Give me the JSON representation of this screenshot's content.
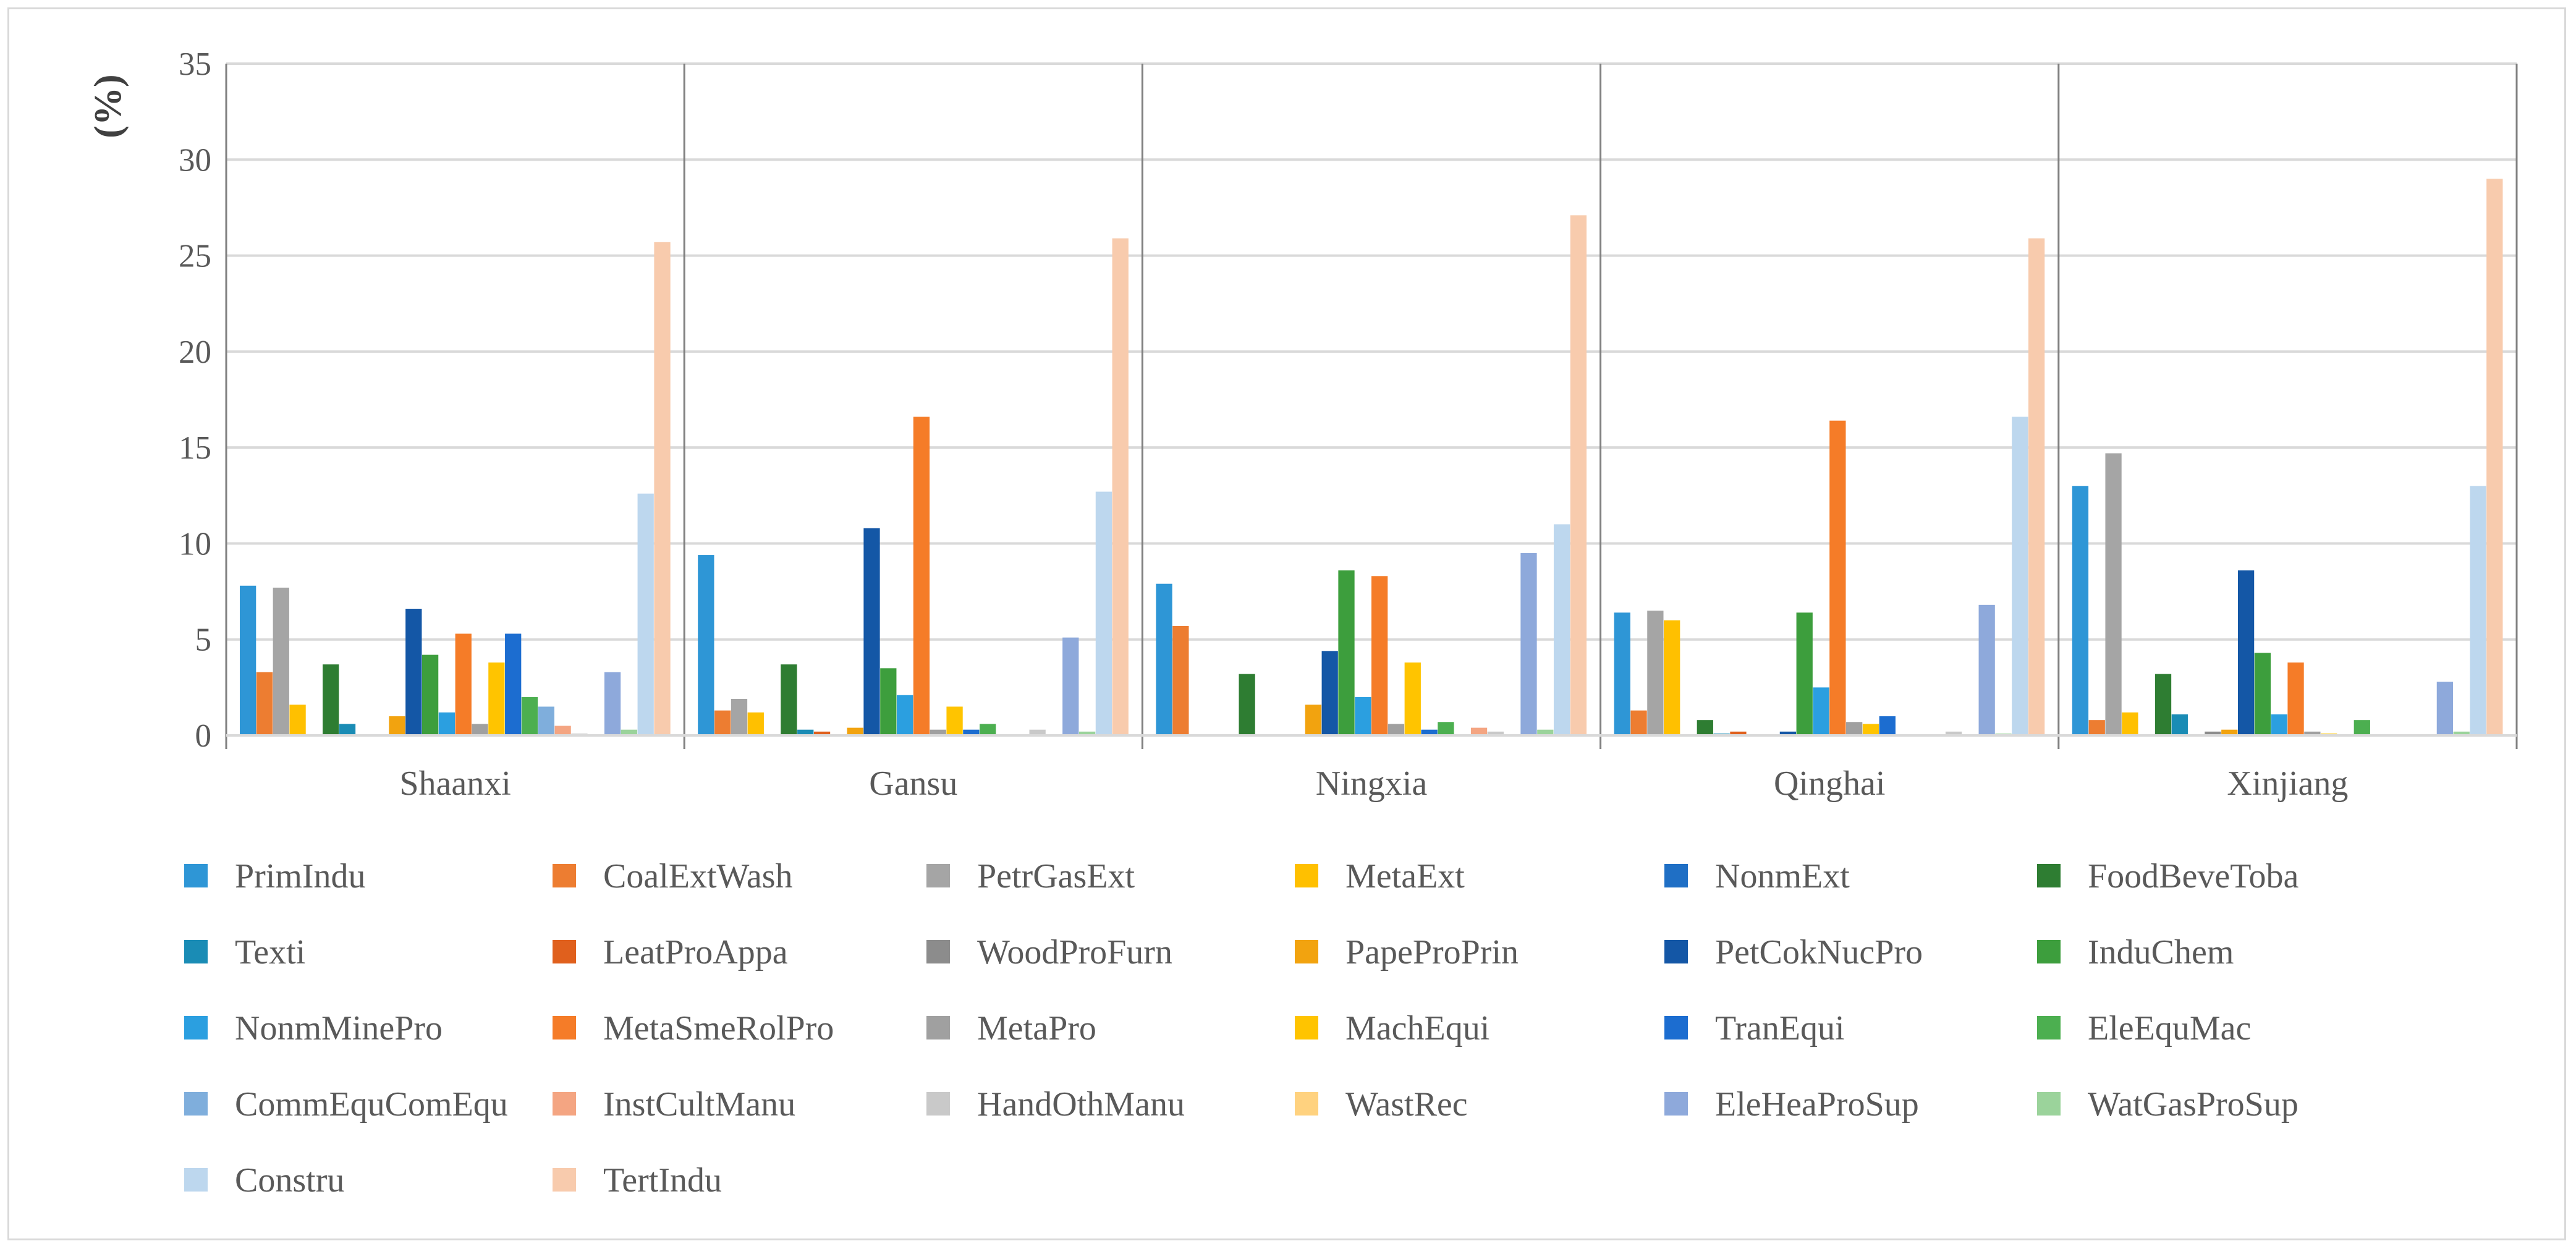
{
  "chart_data": {
    "type": "bar",
    "ylabel": "(%)",
    "ylim": [
      0,
      35
    ],
    "yticks": [
      0,
      5,
      10,
      15,
      20,
      25,
      30,
      35
    ],
    "grid": true,
    "legend_position": "bottom",
    "categories": [
      "Shaanxi",
      "Gansu",
      "Ningxia",
      "Qinghai",
      "Xinjiang"
    ],
    "series": [
      {
        "name": "PrimIndu",
        "color": "#2E96D6",
        "values": [
          7.8,
          9.4,
          7.9,
          6.4,
          13.0
        ]
      },
      {
        "name": "CoalExtWash",
        "color": "#ED7D31",
        "values": [
          3.3,
          1.3,
          5.7,
          1.3,
          0.8
        ]
      },
      {
        "name": "PetrGasExt",
        "color": "#A5A5A5",
        "values": [
          7.7,
          1.9,
          0.0,
          6.5,
          14.7
        ]
      },
      {
        "name": "MetaExt",
        "color": "#FFC000",
        "values": [
          1.6,
          1.2,
          0.0,
          6.0,
          1.2
        ]
      },
      {
        "name": "NonmExt",
        "color": "#1F6FC5",
        "values": [
          0.0,
          0.0,
          0.0,
          0.0,
          0.0
        ]
      },
      {
        "name": "FoodBeveToba",
        "color": "#2E7D32",
        "values": [
          3.7,
          3.7,
          3.2,
          0.8,
          3.2
        ]
      },
      {
        "name": "Texti",
        "color": "#1A8CB5",
        "values": [
          0.6,
          0.3,
          0.0,
          0.1,
          1.1
        ]
      },
      {
        "name": "LeatProAppa",
        "color": "#E0601D",
        "values": [
          0.0,
          0.2,
          0.0,
          0.2,
          0.0
        ]
      },
      {
        "name": "WoodProFurn",
        "color": "#8C8C8C",
        "values": [
          0.0,
          0.0,
          0.0,
          0.0,
          0.2
        ]
      },
      {
        "name": "PapeProPrin",
        "color": "#F2A30F",
        "values": [
          1.0,
          0.4,
          1.6,
          0.0,
          0.3
        ]
      },
      {
        "name": "PetCokNucPro",
        "color": "#1457A6",
        "values": [
          6.6,
          10.8,
          4.4,
          0.2,
          8.6
        ]
      },
      {
        "name": "InduChem",
        "color": "#3D9E3D",
        "values": [
          4.2,
          3.5,
          8.6,
          6.4,
          4.3
        ]
      },
      {
        "name": "NonmMinePro",
        "color": "#2B9FE0",
        "values": [
          1.2,
          2.1,
          2.0,
          2.5,
          1.1
        ]
      },
      {
        "name": "MetaSmeRolPro",
        "color": "#F57C28",
        "values": [
          5.3,
          16.6,
          8.3,
          16.4,
          3.8
        ]
      },
      {
        "name": "MetaPro",
        "color": "#A0A0A0",
        "values": [
          0.6,
          0.3,
          0.6,
          0.7,
          0.2
        ]
      },
      {
        "name": "MachEqui",
        "color": "#FFC400",
        "values": [
          3.8,
          1.5,
          3.8,
          0.6,
          0.1
        ]
      },
      {
        "name": "TranEqui",
        "color": "#1C6DD0",
        "values": [
          5.3,
          0.3,
          0.3,
          1.0,
          0.0
        ]
      },
      {
        "name": "EleEquMac",
        "color": "#4CAF50",
        "values": [
          2.0,
          0.6,
          0.7,
          0.0,
          0.8
        ]
      },
      {
        "name": "CommEquComEqu",
        "color": "#7FAEDC",
        "values": [
          1.5,
          0.0,
          0.0,
          0.0,
          0.0
        ]
      },
      {
        "name": "InstCultManu",
        "color": "#F4A582",
        "values": [
          0.5,
          0.0,
          0.4,
          0.0,
          0.0
        ]
      },
      {
        "name": "HandOthManu",
        "color": "#C9C9C9",
        "values": [
          0.1,
          0.3,
          0.2,
          0.2,
          0.0
        ]
      },
      {
        "name": "WastRec",
        "color": "#FFD27F",
        "values": [
          0.0,
          0.0,
          0.0,
          0.0,
          0.0
        ]
      },
      {
        "name": "EleHeaProSup",
        "color": "#8EA9DB",
        "values": [
          3.3,
          5.1,
          9.5,
          6.8,
          2.8
        ]
      },
      {
        "name": "WatGasProSup",
        "color": "#9BD39B",
        "values": [
          0.3,
          0.2,
          0.3,
          0.1,
          0.2
        ]
      },
      {
        "name": "Constru",
        "color": "#BDD7EE",
        "values": [
          12.6,
          12.7,
          11.0,
          16.6,
          13.0
        ]
      },
      {
        "name": "TertIndu",
        "color": "#F8CBAD",
        "values": [
          25.7,
          25.9,
          27.1,
          25.9,
          29.0
        ]
      }
    ]
  }
}
